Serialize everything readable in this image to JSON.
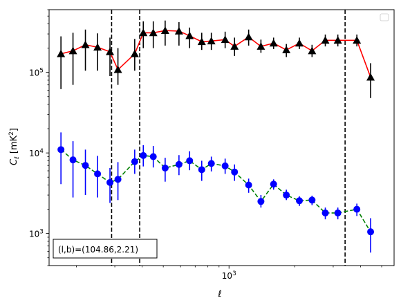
{
  "chart_data": {
    "type": "scatter",
    "xscale": "log",
    "yscale": "log",
    "xlim": [
      150,
      5700
    ],
    "ylim": [
      400,
      600000
    ],
    "xticks": [
      {
        "value": 1000,
        "base": "10",
        "exp": "3"
      }
    ],
    "yticks": [
      {
        "value": 1000,
        "base": "10",
        "exp": "3"
      },
      {
        "value": 10000,
        "base": "10",
        "exp": "4"
      },
      {
        "value": 100000,
        "base": "10",
        "exp": "5"
      }
    ],
    "xlabel": "ℓ",
    "ylabel": {
      "main": "C",
      "sub": "ℓ",
      "unit_open": " [mK",
      "sup": "2",
      "unit_close": "]"
    },
    "annotation": "(l,b)=(104.86,2.21)",
    "legend": {
      "placement": "top-right",
      "entries": []
    },
    "vlines": [
      290,
      390,
      3400
    ],
    "series": [
      {
        "color": "#ff0000",
        "marker_color": "#000000",
        "marker": "triangle",
        "line_style": "solid",
        "x": [
          170,
          193,
          220,
          250,
          285,
          310,
          370,
          405,
          450,
          510,
          590,
          660,
          750,
          830,
          960,
          1060,
          1230,
          1400,
          1600,
          1830,
          2100,
          2400,
          2760,
          3150,
          3850,
          4450
        ],
        "y": [
          170000,
          185000,
          220000,
          205000,
          180000,
          108000,
          170000,
          310000,
          310000,
          330000,
          325000,
          285000,
          240000,
          245000,
          255000,
          210000,
          275000,
          210000,
          230000,
          190000,
          230000,
          185000,
          250000,
          250000,
          250000,
          87000
        ],
        "err_low": [
          62000,
          70000,
          105000,
          105000,
          90000,
          70000,
          105000,
          200000,
          200000,
          215000,
          215000,
          200000,
          190000,
          190000,
          200000,
          160000,
          215000,
          175000,
          195000,
          155000,
          195000,
          155000,
          210000,
          210000,
          210000,
          48000
        ],
        "err_high": [
          280000,
          310000,
          340000,
          305000,
          270000,
          200000,
          260000,
          430000,
          430000,
          440000,
          420000,
          360000,
          310000,
          310000,
          320000,
          270000,
          340000,
          255000,
          270000,
          225000,
          270000,
          220000,
          295000,
          295000,
          295000,
          130000
        ]
      },
      {
        "color": "#008000",
        "marker_color": "#0000ff",
        "marker": "circle",
        "line_style": "dashed",
        "x": [
          170,
          193,
          220,
          250,
          285,
          310,
          370,
          405,
          450,
          510,
          590,
          660,
          750,
          830,
          960,
          1060,
          1230,
          1400,
          1600,
          1830,
          2100,
          2400,
          2760,
          3150,
          3850,
          4450
        ],
        "y": [
          11000,
          8200,
          7000,
          5500,
          4300,
          4700,
          7800,
          9300,
          9000,
          6500,
          7200,
          8000,
          6200,
          7400,
          6900,
          5800,
          4000,
          2500,
          4100,
          3000,
          2550,
          2600,
          1800,
          1800,
          2000,
          1050
        ],
        "err_low": [
          4100,
          2800,
          3000,
          2800,
          2400,
          2600,
          5500,
          6800,
          6600,
          4400,
          5300,
          6100,
          4500,
          5900,
          5500,
          4500,
          3200,
          2100,
          3500,
          2600,
          2200,
          2250,
          1500,
          1500,
          1650,
          580
        ],
        "err_high": [
          18000,
          14000,
          11000,
          9200,
          6500,
          7700,
          11000,
          12500,
          12200,
          8700,
          9400,
          10500,
          8000,
          9000,
          8500,
          7200,
          4800,
          3000,
          4700,
          3500,
          2900,
          2950,
          2100,
          2100,
          2350,
          1550
        ]
      }
    ]
  }
}
